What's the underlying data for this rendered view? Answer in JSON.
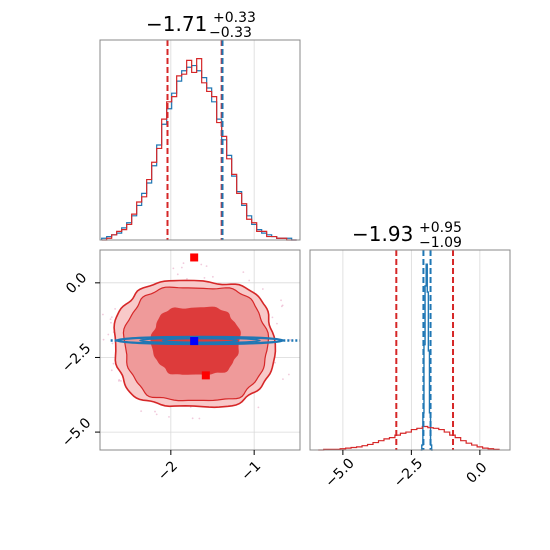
{
  "chart_data": {
    "type": "corner",
    "colors": {
      "blue": "#1f77b4",
      "red": "#d62728",
      "grid": "#d9d9d9",
      "frame": "#888888"
    },
    "panels": {
      "x_hist": {
        "title": {
          "value": "−1.71",
          "upper": "+0.33",
          "lower": "−0.33"
        },
        "xlim": [
          -2.85,
          -0.45
        ],
        "quantile_lines": {
          "blue": [
            -1.38
          ],
          "red": [
            -2.04,
            -1.39
          ]
        },
        "series": [
          {
            "color": "blue",
            "centers": [
              -2.8,
              -2.74,
              -2.68,
              -2.62,
              -2.56,
              -2.5,
              -2.44,
              -2.38,
              -2.32,
              -2.26,
              -2.2,
              -2.14,
              -2.08,
              -2.02,
              -1.96,
              -1.9,
              -1.84,
              -1.78,
              -1.72,
              -1.66,
              -1.6,
              -1.54,
              -1.48,
              -1.42,
              -1.36,
              -1.3,
              -1.24,
              -1.18,
              -1.12,
              -1.06,
              -1.0,
              -0.94,
              -0.88,
              -0.82,
              -0.76,
              -0.7,
              -0.64,
              -0.58,
              -0.52
            ],
            "counts": [
              1,
              2,
              3,
              4,
              7,
              10,
              14,
              20,
              27,
              33,
              43,
              55,
              67,
              76,
              85,
              92,
              98,
              100,
              101,
              98,
              94,
              88,
              80,
              70,
              58,
              49,
              37,
              28,
              20,
              14,
              9,
              6,
              4,
              3,
              2,
              1,
              1,
              1,
              0
            ]
          },
          {
            "color": "red",
            "centers": [
              -2.8,
              -2.74,
              -2.68,
              -2.62,
              -2.56,
              -2.5,
              -2.44,
              -2.38,
              -2.32,
              -2.26,
              -2.2,
              -2.14,
              -2.08,
              -2.02,
              -1.96,
              -1.9,
              -1.84,
              -1.78,
              -1.72,
              -1.66,
              -1.6,
              -1.54,
              -1.48,
              -1.42,
              -1.36,
              -1.3,
              -1.24,
              -1.18,
              -1.12,
              -1.06,
              -1.0,
              -0.94,
              -0.88,
              -0.82,
              -0.76,
              -0.7,
              -0.64,
              -0.58,
              -0.52
            ],
            "counts": [
              0,
              1,
              3,
              5,
              6,
              9,
              15,
              22,
              25,
              35,
              45,
              53,
              70,
              80,
              83,
              95,
              96,
              104,
              97,
              105,
              91,
              86,
              83,
              68,
              60,
              47,
              38,
              27,
              21,
              12,
              10,
              5,
              5,
              2,
              2,
              1,
              1,
              0,
              0
            ]
          }
        ]
      },
      "scatter": {
        "xlim": [
          -2.85,
          -0.45
        ],
        "ylim": [
          -5.6,
          1.1
        ],
        "xticks": [
          -2,
          -1
        ],
        "xtick_labels": [
          "−2",
          "−1"
        ],
        "yticks": [
          0.0,
          -2.5,
          -5.0
        ],
        "ytick_labels": [
          "0.0",
          "−2.5",
          "−5.0"
        ],
        "contours": {
          "red_outer": {
            "cx": -1.72,
            "cy": -2.05,
            "rx": 0.95,
            "ry": 2.12
          },
          "red_mid": {
            "cx": -1.7,
            "cy": -2.05,
            "rx": 0.84,
            "ry": 1.92
          },
          "red_inner": {
            "cx": -1.7,
            "cy": -1.95,
            "rx": 0.52,
            "ry": 1.15
          },
          "blue_band": {
            "x": [
              -2.65,
              -0.65
            ],
            "y": -1.93,
            "half_height": 0.12
          }
        },
        "markers": {
          "blue_square": {
            "x": -1.72,
            "y": -1.95
          },
          "red_squares": [
            {
              "x": -1.72,
              "y": 0.85
            },
            {
              "x": -1.58,
              "y": -3.1
            },
            {
              "x": -1.72,
              "y": -1.95
            }
          ]
        }
      },
      "y_hist": {
        "title": {
          "value": "−1.93",
          "upper": "+0.95",
          "lower": "−1.09"
        },
        "xlim": [
          -6.2,
          1.1
        ],
        "xticks": [
          -5.0,
          -2.5,
          0.0
        ],
        "xtick_labels": [
          "−5.0",
          "−2.5",
          "0.0"
        ],
        "quantile_lines": {
          "red": [
            -3.05,
            -0.98
          ],
          "blue": [
            -2.06,
            -1.8
          ]
        },
        "red_series": {
          "centers": [
            -5.8,
            -5.6,
            -5.4,
            -5.2,
            -5.0,
            -4.8,
            -4.6,
            -4.4,
            -4.2,
            -4.0,
            -3.8,
            -3.6,
            -3.4,
            -3.2,
            -3.0,
            -2.8,
            -2.6,
            -2.4,
            -2.2,
            -2.0,
            -1.8,
            -1.6,
            -1.4,
            -1.2,
            -1.0,
            -0.8,
            -0.6,
            -0.4,
            -0.2,
            0.0,
            0.2,
            0.4,
            0.6
          ],
          "counts": [
            0,
            1,
            1,
            1,
            2,
            3,
            4,
            5,
            7,
            9,
            12,
            15,
            18,
            20,
            24,
            27,
            29,
            33,
            35,
            38,
            36,
            35,
            33,
            29,
            24,
            20,
            15,
            11,
            8,
            5,
            3,
            2,
            1
          ]
        },
        "blue_series": {
          "centers": [
            -2.14,
            -2.1,
            -2.06,
            -2.02,
            -1.98,
            -1.94,
            -1.9,
            -1.86,
            -1.82,
            -1.78,
            -1.74
          ],
          "counts": [
            0,
            8,
            60,
            170,
            265,
            300,
            255,
            160,
            60,
            8,
            0
          ]
        }
      }
    }
  }
}
